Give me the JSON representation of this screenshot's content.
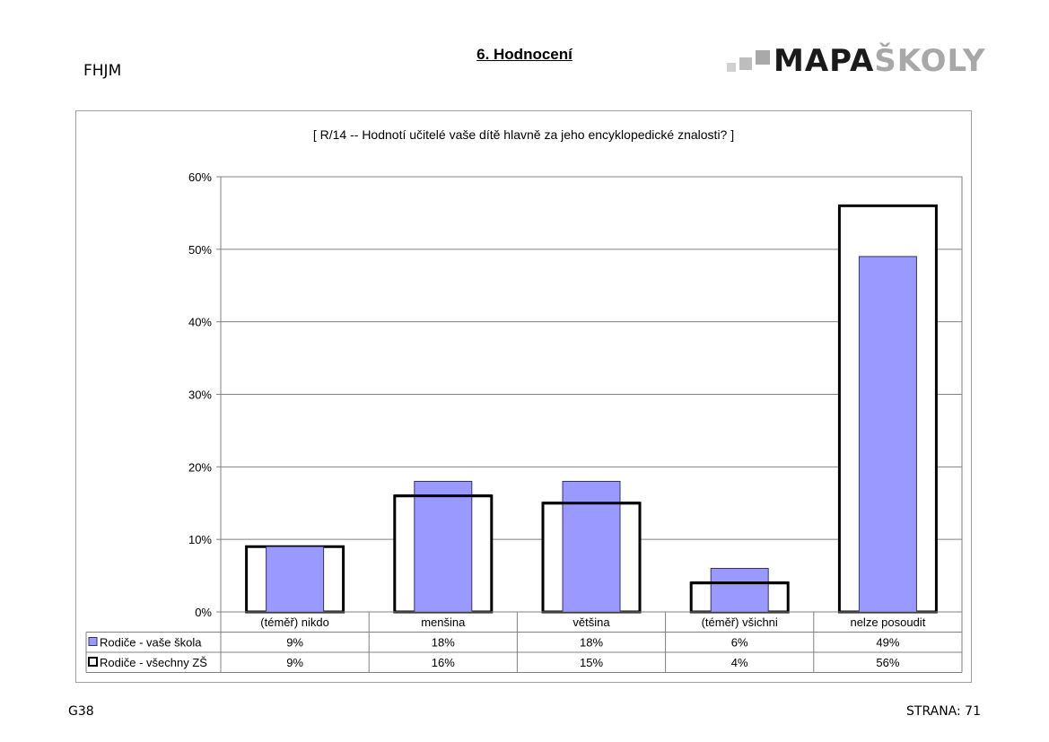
{
  "header": {
    "school_code": "FHJM",
    "page_title": "6. Hodnocení",
    "logo": {
      "part_a": "MAPA",
      "part_b": "ŠKOLY"
    }
  },
  "footer": {
    "left": "G38",
    "right": "STRANA: 71"
  },
  "chart_data": {
    "type": "bar",
    "title": "[ R/14 -- Hodnotí učitelé vaše dítě hlavně za jeho encyklopedické znalosti? ]",
    "categories": [
      "(téměř) nikdo",
      "menšina",
      "většina",
      "(téměř) všichni",
      "nelze posoudit"
    ],
    "series": [
      {
        "name": "Rodiče - vaše škola",
        "values": [
          9,
          18,
          18,
          6,
          49
        ],
        "labels": [
          "9%",
          "18%",
          "18%",
          "6%",
          "49%"
        ],
        "color": "#9999ff",
        "style": "filled"
      },
      {
        "name": "Rodiče - všechny ZŠ",
        "values": [
          9,
          16,
          15,
          4,
          56
        ],
        "labels": [
          "9%",
          "16%",
          "15%",
          "4%",
          "56%"
        ],
        "color": "#000000",
        "style": "outline"
      }
    ],
    "ylim": [
      0,
      60
    ],
    "yticks": [
      "0%",
      "10%",
      "20%",
      "30%",
      "40%",
      "50%",
      "60%"
    ],
    "grid": true,
    "legend": "data-table"
  }
}
